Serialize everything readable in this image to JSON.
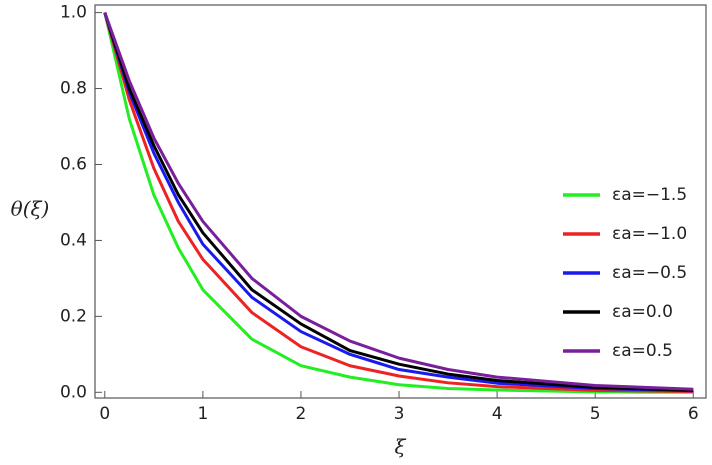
{
  "chart_data": {
    "type": "line",
    "xlabel": "ξ",
    "ylabel": "θ(ξ)",
    "x": [
      0,
      0.25,
      0.5,
      0.75,
      1,
      1.5,
      2,
      2.5,
      3,
      3.5,
      4,
      5,
      6
    ],
    "series": [
      {
        "name": "εa=−1.5",
        "color": "#22ee22",
        "values": [
          1,
          0.72,
          0.52,
          0.38,
          0.27,
          0.14,
          0.07,
          0.04,
          0.02,
          0.01,
          0.006,
          0.001,
          0
        ]
      },
      {
        "name": "εa=−1.0",
        "color": "#ee2222",
        "values": [
          1,
          0.77,
          0.59,
          0.45,
          0.35,
          0.21,
          0.12,
          0.07,
          0.043,
          0.025,
          0.015,
          0.005,
          0.002
        ]
      },
      {
        "name": "εa=−0.5",
        "color": "#1a1aee",
        "values": [
          1,
          0.79,
          0.63,
          0.5,
          0.39,
          0.25,
          0.16,
          0.1,
          0.06,
          0.04,
          0.024,
          0.01,
          0.004
        ]
      },
      {
        "name": "εa=0.0",
        "color": "#000000",
        "values": [
          1,
          0.8,
          0.65,
          0.52,
          0.42,
          0.27,
          0.18,
          0.11,
          0.074,
          0.048,
          0.031,
          0.013,
          0.005
        ]
      },
      {
        "name": "εa=0.5",
        "color": "#7a1f9a",
        "values": [
          1,
          0.82,
          0.67,
          0.55,
          0.45,
          0.3,
          0.2,
          0.135,
          0.09,
          0.06,
          0.04,
          0.018,
          0.008
        ]
      }
    ],
    "xlim": [
      -0.1,
      6.13
    ],
    "ylim": [
      -0.015,
      1.02
    ],
    "xticks": [
      0,
      1,
      2,
      3,
      4,
      5,
      6
    ],
    "yticks": [
      {
        "value": 0,
        "label": "0.0"
      },
      0.2,
      0.4,
      0.6,
      0.8,
      {
        "value": 1,
        "label": "1.0"
      }
    ],
    "legend": "right"
  }
}
